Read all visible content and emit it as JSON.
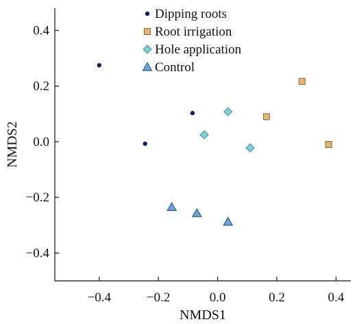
{
  "chart_data": {
    "type": "scatter",
    "xlabel": "NMDS1",
    "ylabel": "NMDS2",
    "xlim": [
      -0.55,
      0.45
    ],
    "ylim": [
      -0.5,
      0.48
    ],
    "xticks": [
      -0.4,
      -0.2,
      0.0,
      0.2,
      0.4
    ],
    "xtick_labels": [
      "−0.4",
      "−0.2",
      "0.0",
      "0.2",
      "0.4"
    ],
    "yticks": [
      0.4,
      0.2,
      0.0,
      -0.2,
      -0.4
    ],
    "ytick_labels": [
      "0.4",
      "0.2",
      "0.0",
      "−0.2",
      "−0.4"
    ],
    "grid": false,
    "legend_position": "top-center",
    "series": [
      {
        "name": "Dipping roots",
        "marker": "circle",
        "color": "#0b1f6b",
        "points": [
          {
            "x": -0.4,
            "y": 0.275
          },
          {
            "x": -0.085,
            "y": 0.103
          },
          {
            "x": -0.245,
            "y": -0.007
          }
        ]
      },
      {
        "name": "Root irrigation",
        "marker": "square",
        "color": "#e6b566",
        "stroke": "#7a6a4a",
        "points": [
          {
            "x": 0.285,
            "y": 0.217
          },
          {
            "x": 0.165,
            "y": 0.09
          },
          {
            "x": 0.375,
            "y": -0.01
          }
        ]
      },
      {
        "name": "Hole application",
        "marker": "diamond",
        "color": "#7ccfd6",
        "stroke": "#4a8f99",
        "points": [
          {
            "x": 0.035,
            "y": 0.108
          },
          {
            "x": -0.045,
            "y": 0.025
          },
          {
            "x": 0.11,
            "y": -0.022
          }
        ]
      },
      {
        "name": "Control",
        "marker": "triangle",
        "color": "#6aa7d8",
        "stroke": "#2f5f8f",
        "points": [
          {
            "x": -0.155,
            "y": -0.235
          },
          {
            "x": -0.07,
            "y": -0.257
          },
          {
            "x": 0.035,
            "y": -0.288
          }
        ]
      }
    ]
  }
}
